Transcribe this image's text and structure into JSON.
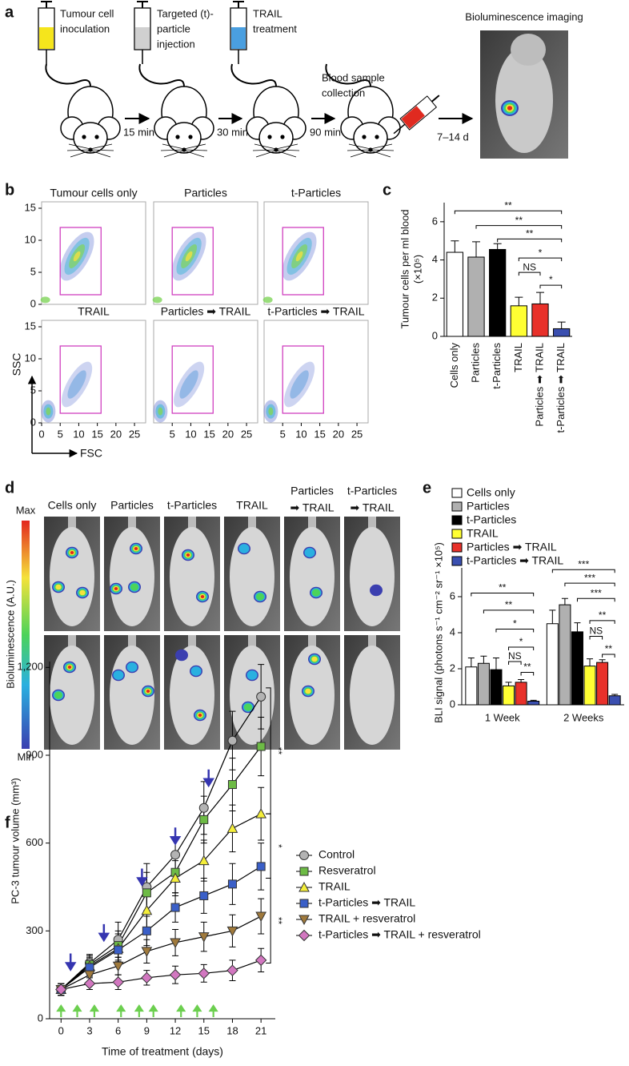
{
  "figure": {
    "panel_labels": [
      "a",
      "b",
      "c",
      "d",
      "e",
      "f"
    ]
  },
  "workflow": {
    "steps": [
      [
        "Tumour cell",
        "inoculation"
      ],
      [
        "Targeted (t)-",
        "particle",
        "injection"
      ],
      [
        "TRAIL",
        "treatment"
      ],
      [
        "Blood sample",
        "collection"
      ],
      [
        "Bioluminescence imaging"
      ]
    ],
    "intervals": [
      "15 min",
      "30 min",
      "90 min",
      "7–14 d"
    ]
  },
  "flow": {
    "titles": [
      "Tumour cells only",
      "Particles",
      "t-Particles",
      "TRAIL",
      "Particles ➡ TRAIL",
      "t-Particles ➡ TRAIL"
    ],
    "xlim": [
      0,
      28
    ],
    "xticks": [
      0,
      5,
      10,
      15,
      20,
      25
    ],
    "ylim": [
      0,
      16
    ],
    "yticks": [
      0,
      5,
      10,
      15
    ],
    "xlabel": "FSC",
    "ylabel": "SSC",
    "gate": {
      "x": [
        5,
        16
      ],
      "y": [
        1.5,
        12
      ]
    }
  },
  "imaging": {
    "headers": [
      [
        "Cells only"
      ],
      [
        "Particles"
      ],
      [
        "t-Particles"
      ],
      [
        "TRAIL"
      ],
      [
        "Particles",
        "➡ TRAIL"
      ],
      [
        "t-Particles",
        "➡ TRAIL"
      ]
    ],
    "scale_max": "Max",
    "scale_min": "Min",
    "scale_label": "Bioluminescence (A.U.)"
  },
  "chart_data": [
    {
      "type": "bar",
      "ylabel": [
        "Tumour cells per ml blood",
        "(×10⁵)"
      ],
      "categories": [
        "Cells only",
        "Particles",
        "t-Particles",
        "TRAIL",
        "Particles ➡ TRAIL",
        "t-Particles ➡ TRAIL"
      ],
      "values": [
        4.4,
        4.15,
        4.55,
        1.6,
        1.7,
        0.4
      ],
      "errors": [
        0.6,
        0.8,
        0.3,
        0.45,
        0.6,
        0.35
      ],
      "colors": [
        "#ffffff",
        "#b0b0b0",
        "#000000",
        "#ffff33",
        "#e8312a",
        "#3a4fb0"
      ],
      "ylim": [
        0,
        7
      ],
      "yticks": [
        0,
        2,
        4,
        6
      ],
      "brackets": [
        {
          "from": 0,
          "to": 5,
          "y": 6.57,
          "label": "**"
        },
        {
          "from": 1,
          "to": 5,
          "y": 5.8,
          "label": "**"
        },
        {
          "from": 2,
          "to": 5,
          "y": 5.1,
          "label": "**"
        },
        {
          "from": 3,
          "to": 5,
          "y": 4.1,
          "label": "*"
        },
        {
          "from": 3,
          "to": 4,
          "y": 3.35,
          "label": "NS"
        },
        {
          "from": 4,
          "to": 5,
          "y": 2.68,
          "label": "*"
        }
      ]
    },
    {
      "type": "bar",
      "ylabel": "BLI signal (photons s⁻¹ cm⁻² sr⁻¹ ×10⁵)",
      "categories": [
        "1 Week",
        "2 Weeks"
      ],
      "series": [
        {
          "name": "Cells only",
          "color": "#ffffff",
          "values": [
            2.1,
            4.5
          ],
          "errors": [
            0.5,
            0.75
          ]
        },
        {
          "name": "Particles",
          "color": "#b0b0b0",
          "values": [
            2.3,
            5.55
          ],
          "errors": [
            0.4,
            0.35
          ]
        },
        {
          "name": "t-Particles",
          "color": "#000000",
          "values": [
            1.95,
            4.05
          ],
          "errors": [
            0.65,
            0.5
          ]
        },
        {
          "name": "TRAIL",
          "color": "#ffff33",
          "values": [
            1.05,
            2.15
          ],
          "errors": [
            0.2,
            0.4
          ]
        },
        {
          "name": "Particles ➡ TRAIL",
          "color": "#e8312a",
          "values": [
            1.25,
            2.35
          ],
          "errors": [
            0.15,
            0.15
          ]
        },
        {
          "name": "t-Particles ➡ TRAIL",
          "color": "#3a4fb0",
          "values": [
            0.2,
            0.5
          ],
          "errors": [
            0.05,
            0.08
          ]
        }
      ],
      "ylim": [
        0,
        7.6
      ],
      "yticks": [
        0,
        2,
        4,
        6
      ],
      "brackets": [
        {
          "category": 0,
          "from": 0,
          "to": 5,
          "y": 6.2,
          "label": "**"
        },
        {
          "category": 0,
          "from": 1,
          "to": 5,
          "y": 5.25,
          "label": "**"
        },
        {
          "category": 0,
          "from": 2,
          "to": 5,
          "y": 4.2,
          "label": "*"
        },
        {
          "category": 0,
          "from": 3,
          "to": 5,
          "y": 3.2,
          "label": "*"
        },
        {
          "category": 0,
          "from": 3,
          "to": 4,
          "y": 2.4,
          "label": "NS"
        },
        {
          "category": 0,
          "from": 4,
          "to": 5,
          "y": 1.8,
          "label": "**"
        },
        {
          "category": 1,
          "from": 0,
          "to": 5,
          "y": 7.5,
          "label": "***"
        },
        {
          "category": 1,
          "from": 1,
          "to": 5,
          "y": 6.75,
          "label": "***"
        },
        {
          "category": 1,
          "from": 2,
          "to": 5,
          "y": 5.9,
          "label": "***"
        },
        {
          "category": 1,
          "from": 3,
          "to": 5,
          "y": 4.67,
          "label": "**"
        },
        {
          "category": 1,
          "from": 3,
          "to": 4,
          "y": 3.8,
          "label": "NS"
        },
        {
          "category": 1,
          "from": 4,
          "to": 5,
          "y": 2.8,
          "label": "**"
        }
      ]
    },
    {
      "type": "line",
      "xlabel": "Time of treatment (days)",
      "ylabel": "PC-3 tumour volume (mm³)",
      "x": [
        0,
        3,
        6,
        9,
        12,
        15,
        18,
        21
      ],
      "xlim": [
        -1.2,
        22.5
      ],
      "xticks": [
        0,
        3,
        6,
        9,
        12,
        15,
        18,
        21
      ],
      "ylim": [
        0,
        1220
      ],
      "yticks": [
        0,
        300,
        600,
        900,
        {
          "value": 1200,
          "label": "1,200"
        }
      ],
      "series": [
        {
          "name": "Control",
          "color": "#b3b3b3",
          "marker": "circle",
          "values": [
            100,
            190,
            270,
            450,
            560,
            720,
            950,
            1100
          ],
          "errors": [
            20,
            30,
            60,
            80,
            60,
            90,
            100,
            110
          ]
        },
        {
          "name": "Resveratrol",
          "color": "#6dbb45",
          "marker": "square",
          "values": [
            100,
            185,
            250,
            430,
            500,
            680,
            800,
            930
          ],
          "errors": [
            20,
            30,
            50,
            70,
            70,
            80,
            90,
            100
          ]
        },
        {
          "name": "TRAIL",
          "color": "#f4ee3a",
          "marker": "triangle",
          "values": [
            100,
            180,
            240,
            370,
            480,
            540,
            650,
            700
          ],
          "errors": [
            20,
            30,
            50,
            60,
            60,
            70,
            80,
            90
          ]
        },
        {
          "name": "t-Particles ➡ TRAIL",
          "color": "#3a5fc8",
          "marker": "square",
          "values": [
            100,
            175,
            235,
            300,
            380,
            420,
            460,
            520
          ],
          "errors": [
            20,
            30,
            40,
            50,
            50,
            60,
            70,
            80
          ]
        },
        {
          "name": "TRAIL + resveratrol",
          "color": "#a07a3c",
          "marker": "triangle-down",
          "values": [
            100,
            150,
            180,
            230,
            260,
            280,
            300,
            350
          ],
          "errors": [
            20,
            25,
            30,
            40,
            45,
            50,
            55,
            60
          ]
        },
        {
          "name": "t-Particles ➡ TRAIL + resveratrol",
          "color": "#d277c0",
          "marker": "diamond",
          "values": [
            100,
            120,
            125,
            140,
            150,
            155,
            165,
            200
          ],
          "errors": [
            20,
            20,
            25,
            25,
            30,
            30,
            35,
            40
          ]
        }
      ],
      "trail_days": [
        1,
        4.5,
        8.5,
        12,
        15.5
      ],
      "resveratrol_days": [
        0,
        1.7,
        3.5,
        6.3,
        8.2,
        9.7,
        12.6,
        14.3,
        16
      ],
      "brackets": [
        {
          "from": 1130,
          "to": 700,
          "label": "**"
        },
        {
          "from": 700,
          "to": 480,
          "label": "*"
        },
        {
          "from": 480,
          "to": 190,
          "label": "**"
        }
      ]
    }
  ]
}
